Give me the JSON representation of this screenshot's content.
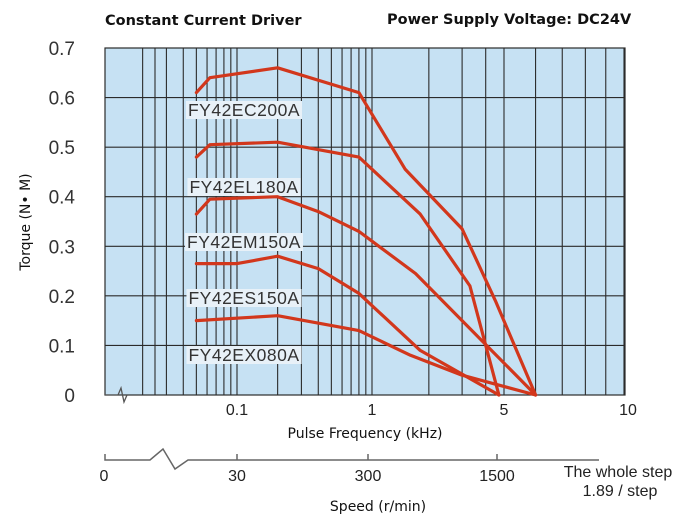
{
  "chart_data": {
    "type": "line",
    "title_left": "Constant Current Driver",
    "title_right": "Power Supply Voltage: DC24V",
    "xlabel": "Pulse Frequency (kHz)",
    "ylabel": "Torque (N• M)",
    "x_scale": "log",
    "xlim": [
      0.02,
      10
    ],
    "ylim": [
      0,
      0.7
    ],
    "grid": true,
    "x_ticks": [
      0.1,
      1,
      5,
      10
    ],
    "x_tick_labels": [
      "0.1",
      "1",
      "5",
      "10"
    ],
    "y_ticks": [
      0,
      0.1,
      0.2,
      0.3,
      0.4,
      0.5,
      0.6,
      0.7
    ],
    "y_tick_labels": [
      "0",
      "0.1",
      "0.2",
      "0.3",
      "0.4",
      "0.5",
      "0.6",
      "0.7"
    ],
    "secondary_axis": {
      "label": "Speed (r/min)",
      "ticks": [
        "0",
        "30",
        "300",
        "1500"
      ],
      "note_line1": "The whole step",
      "note_line2": "1.89 / step"
    },
    "colors": {
      "plot_bg": "#c6e1f3",
      "line": "#d2371c",
      "grid": "#2b2b2b"
    },
    "series": [
      {
        "name": "FY42EC200A",
        "x": [
          0.05,
          0.063,
          0.2,
          0.8,
          1.5,
          3,
          4.5,
          6
        ],
        "y": [
          0.61,
          0.64,
          0.66,
          0.61,
          0.455,
          0.335,
          0.19,
          0
        ]
      },
      {
        "name": "FY42EL180A",
        "x": [
          0.05,
          0.063,
          0.2,
          0.8,
          1.8,
          3.3,
          4.7
        ],
        "y": [
          0.48,
          0.505,
          0.51,
          0.48,
          0.365,
          0.22,
          0
        ]
      },
      {
        "name": "FY42EM150A",
        "x": [
          0.05,
          0.063,
          0.2,
          0.4,
          0.8,
          1.7,
          6
        ],
        "y": [
          0.365,
          0.395,
          0.4,
          0.37,
          0.33,
          0.245,
          0
        ]
      },
      {
        "name": "FY42ES150A",
        "x": [
          0.05,
          0.1,
          0.2,
          0.4,
          0.8,
          1.8,
          4.7
        ],
        "y": [
          0.265,
          0.265,
          0.28,
          0.255,
          0.205,
          0.09,
          0
        ]
      },
      {
        "name": "FY42EX080A",
        "x": [
          0.05,
          0.2,
          0.8,
          1.6,
          3,
          6
        ],
        "y": [
          0.15,
          0.16,
          0.13,
          0.08,
          0.04,
          0
        ]
      }
    ]
  }
}
